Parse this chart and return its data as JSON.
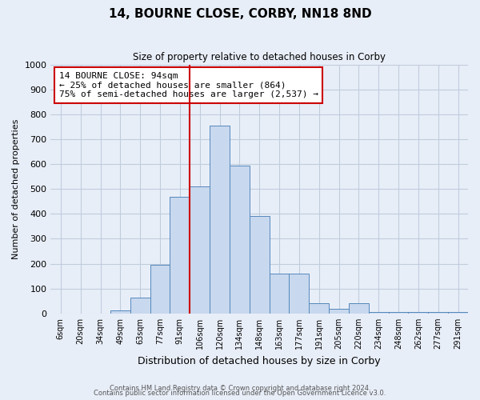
{
  "title": "14, BOURNE CLOSE, CORBY, NN18 8ND",
  "subtitle": "Size of property relative to detached houses in Corby",
  "xlabel": "Distribution of detached houses by size in Corby",
  "ylabel": "Number of detached properties",
  "bin_labels": [
    "6sqm",
    "20sqm",
    "34sqm",
    "49sqm",
    "63sqm",
    "77sqm",
    "91sqm",
    "106sqm",
    "120sqm",
    "134sqm",
    "148sqm",
    "163sqm",
    "177sqm",
    "191sqm",
    "205sqm",
    "220sqm",
    "234sqm",
    "248sqm",
    "262sqm",
    "277sqm",
    "291sqm"
  ],
  "bin_values": [
    0,
    0,
    0,
    12,
    65,
    195,
    470,
    510,
    755,
    595,
    390,
    160,
    160,
    40,
    20,
    40,
    5,
    5,
    5,
    5,
    5
  ],
  "bar_color": "#c8d8ee",
  "bar_edge_color": "#5588bb",
  "vline_color": "#cc0000",
  "vline_bin_index": 7,
  "annotation_text": "14 BOURNE CLOSE: 94sqm\n← 25% of detached houses are smaller (864)\n75% of semi-detached houses are larger (2,537) →",
  "annotation_box_color": "white",
  "annotation_box_edge_color": "#cc0000",
  "ylim": [
    0,
    1000
  ],
  "yticks": [
    0,
    100,
    200,
    300,
    400,
    500,
    600,
    700,
    800,
    900,
    1000
  ],
  "footer1": "Contains HM Land Registry data © Crown copyright and database right 2024.",
  "footer2": "Contains public sector information licensed under the Open Government Licence v3.0.",
  "background_color": "#e8eef8",
  "grid_color": "#c0ccdd"
}
